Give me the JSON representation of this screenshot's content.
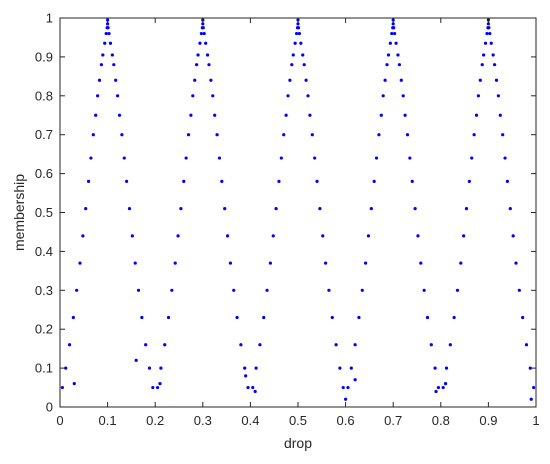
{
  "chart_data": {
    "type": "scatter",
    "title": "",
    "xlabel": "drop",
    "ylabel": "membership",
    "xlim": [
      0,
      1
    ],
    "ylim": [
      0,
      1
    ],
    "xticks": [
      "0",
      "0.1",
      "0.2",
      "0.3",
      "0.4",
      "0.5",
      "0.6",
      "0.7",
      "0.8",
      "0.9",
      "1"
    ],
    "yticks": [
      "0",
      "0.1",
      "0.2",
      "0.3",
      "0.4",
      "0.5",
      "0.6",
      "0.7",
      "0.8",
      "0.9",
      "1"
    ],
    "grid": false,
    "series": [
      {
        "color": "#0000ff",
        "marker": "dot",
        "points": [
          [
            0.1,
            0.995
          ],
          [
            0.1,
            0.985
          ],
          [
            0.101,
            0.975
          ],
          [
            0.099,
            0.975
          ],
          [
            0.103,
            0.96
          ],
          [
            0.097,
            0.96
          ],
          [
            0.106,
            0.935
          ],
          [
            0.094,
            0.935
          ],
          [
            0.11,
            0.905
          ],
          [
            0.09,
            0.905
          ],
          [
            0.113,
            0.88
          ],
          [
            0.087,
            0.88
          ],
          [
            0.117,
            0.84
          ],
          [
            0.083,
            0.84
          ],
          [
            0.121,
            0.8
          ],
          [
            0.079,
            0.8
          ],
          [
            0.125,
            0.75
          ],
          [
            0.075,
            0.75
          ],
          [
            0.13,
            0.7
          ],
          [
            0.07,
            0.7
          ],
          [
            0.135,
            0.64
          ],
          [
            0.065,
            0.64
          ],
          [
            0.14,
            0.58
          ],
          [
            0.06,
            0.58
          ],
          [
            0.146,
            0.51
          ],
          [
            0.054,
            0.51
          ],
          [
            0.152,
            0.44
          ],
          [
            0.048,
            0.44
          ],
          [
            0.158,
            0.37
          ],
          [
            0.042,
            0.37
          ],
          [
            0.165,
            0.3
          ],
          [
            0.035,
            0.3
          ],
          [
            0.172,
            0.23
          ],
          [
            0.028,
            0.23
          ],
          [
            0.18,
            0.16
          ],
          [
            0.02,
            0.16
          ],
          [
            0.188,
            0.1
          ],
          [
            0.012,
            0.1
          ],
          [
            0.195,
            0.05
          ],
          [
            0.005,
            0.05
          ],
          [
            0.16,
            0.12
          ],
          [
            0.03,
            0.06
          ],
          [
            0.3,
            0.995
          ],
          [
            0.3,
            0.985
          ],
          [
            0.301,
            0.975
          ],
          [
            0.299,
            0.975
          ],
          [
            0.303,
            0.96
          ],
          [
            0.297,
            0.96
          ],
          [
            0.306,
            0.935
          ],
          [
            0.294,
            0.935
          ],
          [
            0.31,
            0.905
          ],
          [
            0.29,
            0.905
          ],
          [
            0.313,
            0.88
          ],
          [
            0.287,
            0.88
          ],
          [
            0.317,
            0.84
          ],
          [
            0.283,
            0.84
          ],
          [
            0.321,
            0.8
          ],
          [
            0.279,
            0.8
          ],
          [
            0.325,
            0.75
          ],
          [
            0.275,
            0.75
          ],
          [
            0.33,
            0.7
          ],
          [
            0.27,
            0.7
          ],
          [
            0.335,
            0.64
          ],
          [
            0.265,
            0.64
          ],
          [
            0.34,
            0.58
          ],
          [
            0.26,
            0.58
          ],
          [
            0.346,
            0.51
          ],
          [
            0.254,
            0.51
          ],
          [
            0.352,
            0.44
          ],
          [
            0.248,
            0.44
          ],
          [
            0.358,
            0.37
          ],
          [
            0.242,
            0.37
          ],
          [
            0.365,
            0.3
          ],
          [
            0.235,
            0.3
          ],
          [
            0.372,
            0.23
          ],
          [
            0.228,
            0.23
          ],
          [
            0.38,
            0.16
          ],
          [
            0.22,
            0.16
          ],
          [
            0.388,
            0.1
          ],
          [
            0.212,
            0.1
          ],
          [
            0.395,
            0.05
          ],
          [
            0.205,
            0.05
          ],
          [
            0.21,
            0.06
          ],
          [
            0.39,
            0.08
          ],
          [
            0.5,
            0.995
          ],
          [
            0.5,
            0.985
          ],
          [
            0.501,
            0.975
          ],
          [
            0.499,
            0.975
          ],
          [
            0.503,
            0.96
          ],
          [
            0.497,
            0.96
          ],
          [
            0.506,
            0.935
          ],
          [
            0.494,
            0.935
          ],
          [
            0.51,
            0.905
          ],
          [
            0.49,
            0.905
          ],
          [
            0.513,
            0.88
          ],
          [
            0.487,
            0.88
          ],
          [
            0.517,
            0.84
          ],
          [
            0.483,
            0.84
          ],
          [
            0.521,
            0.8
          ],
          [
            0.479,
            0.8
          ],
          [
            0.525,
            0.75
          ],
          [
            0.475,
            0.75
          ],
          [
            0.53,
            0.7
          ],
          [
            0.47,
            0.7
          ],
          [
            0.535,
            0.64
          ],
          [
            0.465,
            0.64
          ],
          [
            0.54,
            0.58
          ],
          [
            0.46,
            0.58
          ],
          [
            0.546,
            0.51
          ],
          [
            0.454,
            0.51
          ],
          [
            0.552,
            0.44
          ],
          [
            0.448,
            0.44
          ],
          [
            0.558,
            0.37
          ],
          [
            0.442,
            0.37
          ],
          [
            0.565,
            0.3
          ],
          [
            0.435,
            0.3
          ],
          [
            0.572,
            0.23
          ],
          [
            0.428,
            0.23
          ],
          [
            0.58,
            0.16
          ],
          [
            0.42,
            0.16
          ],
          [
            0.588,
            0.1
          ],
          [
            0.412,
            0.1
          ],
          [
            0.595,
            0.05
          ],
          [
            0.405,
            0.05
          ],
          [
            0.41,
            0.04
          ],
          [
            0.6,
            0.02
          ],
          [
            0.7,
            0.995
          ],
          [
            0.7,
            0.985
          ],
          [
            0.701,
            0.975
          ],
          [
            0.699,
            0.975
          ],
          [
            0.703,
            0.96
          ],
          [
            0.697,
            0.96
          ],
          [
            0.706,
            0.935
          ],
          [
            0.694,
            0.935
          ],
          [
            0.71,
            0.905
          ],
          [
            0.69,
            0.905
          ],
          [
            0.713,
            0.88
          ],
          [
            0.687,
            0.88
          ],
          [
            0.717,
            0.84
          ],
          [
            0.683,
            0.84
          ],
          [
            0.721,
            0.8
          ],
          [
            0.679,
            0.8
          ],
          [
            0.725,
            0.75
          ],
          [
            0.675,
            0.75
          ],
          [
            0.73,
            0.7
          ],
          [
            0.67,
            0.7
          ],
          [
            0.735,
            0.64
          ],
          [
            0.665,
            0.64
          ],
          [
            0.74,
            0.58
          ],
          [
            0.66,
            0.58
          ],
          [
            0.746,
            0.51
          ],
          [
            0.654,
            0.51
          ],
          [
            0.752,
            0.44
          ],
          [
            0.648,
            0.44
          ],
          [
            0.758,
            0.37
          ],
          [
            0.642,
            0.37
          ],
          [
            0.765,
            0.3
          ],
          [
            0.635,
            0.3
          ],
          [
            0.772,
            0.23
          ],
          [
            0.628,
            0.23
          ],
          [
            0.78,
            0.16
          ],
          [
            0.62,
            0.16
          ],
          [
            0.788,
            0.1
          ],
          [
            0.612,
            0.1
          ],
          [
            0.795,
            0.05
          ],
          [
            0.605,
            0.05
          ],
          [
            0.62,
            0.07
          ],
          [
            0.79,
            0.04
          ],
          [
            0.9,
            0.995
          ],
          [
            0.9,
            0.985
          ],
          [
            0.901,
            0.975
          ],
          [
            0.899,
            0.975
          ],
          [
            0.903,
            0.96
          ],
          [
            0.897,
            0.96
          ],
          [
            0.906,
            0.935
          ],
          [
            0.894,
            0.935
          ],
          [
            0.91,
            0.905
          ],
          [
            0.89,
            0.905
          ],
          [
            0.913,
            0.88
          ],
          [
            0.887,
            0.88
          ],
          [
            0.917,
            0.84
          ],
          [
            0.883,
            0.84
          ],
          [
            0.921,
            0.8
          ],
          [
            0.879,
            0.8
          ],
          [
            0.925,
            0.75
          ],
          [
            0.875,
            0.75
          ],
          [
            0.93,
            0.7
          ],
          [
            0.87,
            0.7
          ],
          [
            0.935,
            0.64
          ],
          [
            0.865,
            0.64
          ],
          [
            0.94,
            0.58
          ],
          [
            0.86,
            0.58
          ],
          [
            0.946,
            0.51
          ],
          [
            0.854,
            0.51
          ],
          [
            0.952,
            0.44
          ],
          [
            0.848,
            0.44
          ],
          [
            0.958,
            0.37
          ],
          [
            0.842,
            0.37
          ],
          [
            0.965,
            0.3
          ],
          [
            0.835,
            0.3
          ],
          [
            0.972,
            0.23
          ],
          [
            0.828,
            0.23
          ],
          [
            0.98,
            0.16
          ],
          [
            0.82,
            0.16
          ],
          [
            0.988,
            0.1
          ],
          [
            0.812,
            0.1
          ],
          [
            0.995,
            0.05
          ],
          [
            0.805,
            0.05
          ],
          [
            0.99,
            0.02
          ],
          [
            0.81,
            0.06
          ]
        ]
      }
    ]
  }
}
